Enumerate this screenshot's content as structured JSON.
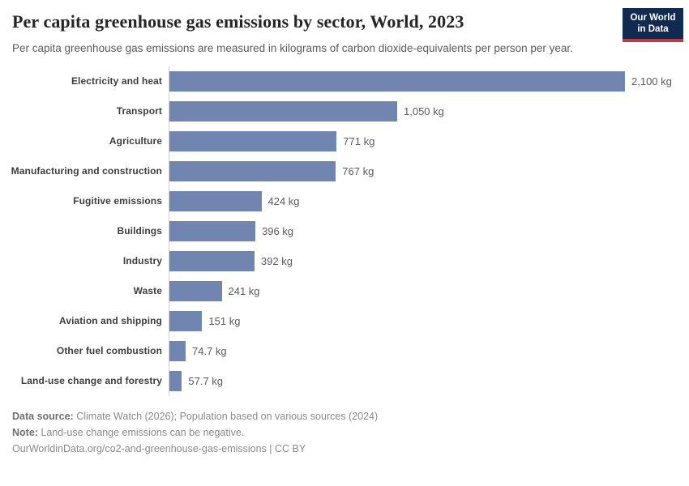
{
  "header": {
    "title": "Per capita greenhouse gas emissions by sector, World, 2023",
    "subtitle": "Per capita greenhouse gas emissions are measured in kilograms of carbon dioxide-equivalents per person per year.",
    "logo": {
      "line1": "Our World",
      "line2": "in Data"
    }
  },
  "chart_data": {
    "type": "bar",
    "orientation": "horizontal",
    "title": "Per capita greenhouse gas emissions by sector, World, 2023",
    "unit": "kg",
    "xlim": [
      0,
      2100
    ],
    "grid": false,
    "legend": false,
    "categories": [
      "Electricity and heat",
      "Transport",
      "Agriculture",
      "Manufacturing and construction",
      "Fugitive emissions",
      "Buildings",
      "Industry",
      "Waste",
      "Aviation and shipping",
      "Other fuel combustion",
      "Land-use change and forestry"
    ],
    "values": [
      2100,
      1050,
      771,
      767,
      424,
      396,
      392,
      241,
      151,
      74.7,
      57.7
    ],
    "value_labels": [
      "2,100 kg",
      "1,050 kg",
      "771 kg",
      "767 kg",
      "424 kg",
      "396 kg",
      "392 kg",
      "241 kg",
      "151 kg",
      "74.7 kg",
      "57.7 kg"
    ]
  },
  "colors": {
    "bar": "#7086b0",
    "logo_navy": "#102a50",
    "logo_red": "#bc3a40",
    "axis_line": "#cfcfcf"
  },
  "footer": {
    "data_source_label": "Data source:",
    "data_source_text": "Climate Watch (2026); Population based on various sources (2024)",
    "note_label": "Note:",
    "note_text": "Land-use change emissions can be negative.",
    "url": "OurWorldinData.org/co2-and-greenhouse-gas-emissions",
    "separator": "|",
    "license": "CC BY"
  }
}
